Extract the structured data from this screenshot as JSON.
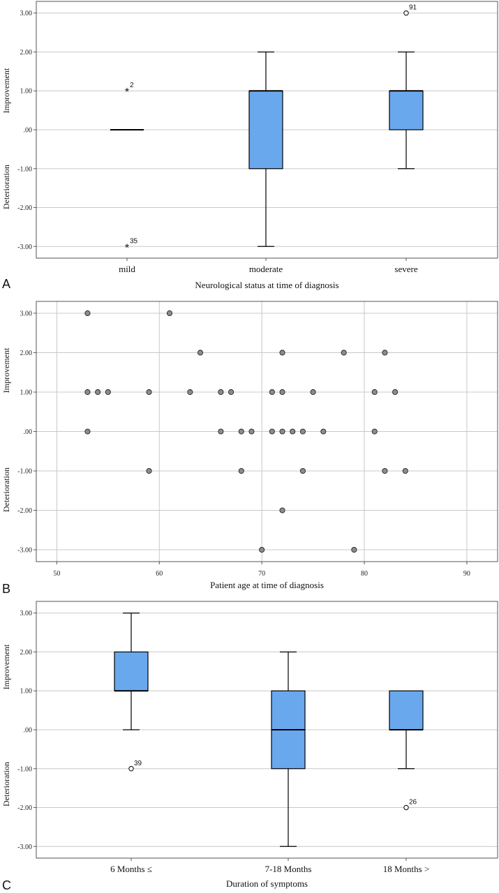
{
  "chart_data": [
    {
      "panel_label": "A",
      "type": "box",
      "xlabel": "Neurological status at time of diagnosis",
      "y_annotations": [
        "Improvement",
        "Deterioration"
      ],
      "ylim": [
        -3.3,
        3.3
      ],
      "yticks": [
        3,
        2,
        1,
        0,
        -1,
        -2,
        -3
      ],
      "ytick_labels": [
        "3.00",
        "2.00",
        "1.00",
        ".00",
        "-1.00",
        "-2.00",
        "-3.00"
      ],
      "grid": "horizontal",
      "categories": [
        "mild",
        "moderate",
        "severe"
      ],
      "boxes": [
        {
          "min": 0,
          "q1": 0,
          "median": 0,
          "q3": 0,
          "max": 0
        },
        {
          "min": -3,
          "q1": -1,
          "median": 1,
          "q3": 1,
          "max": 2
        },
        {
          "min": -1,
          "q1": 0,
          "median": 1,
          "q3": 1,
          "max": 2
        }
      ],
      "outliers": [
        {
          "category": 0,
          "value": 1,
          "label": "2",
          "marker": "star"
        },
        {
          "category": 0,
          "value": -3,
          "label": "35",
          "marker": "star"
        },
        {
          "category": 2,
          "value": 3,
          "label": "91",
          "marker": "circle"
        }
      ]
    },
    {
      "panel_label": "B",
      "type": "scatter",
      "xlabel": "Patient age at time of diagnosis",
      "y_annotations": [
        "Improvement",
        "Deterioration"
      ],
      "xlim": [
        48,
        93
      ],
      "xticks": [
        50,
        60,
        70,
        80,
        90
      ],
      "ylim": [
        -3.3,
        3.3
      ],
      "yticks": [
        3,
        2,
        1,
        0,
        -1,
        -2,
        -3
      ],
      "ytick_labels": [
        "3.00",
        "2.00",
        "1.00",
        ".00",
        "-1.00",
        "-2.00",
        "-3.00"
      ],
      "grid": "both",
      "points": [
        [
          53,
          3
        ],
        [
          53,
          1
        ],
        [
          53,
          0
        ],
        [
          54,
          1
        ],
        [
          55,
          1
        ],
        [
          59,
          1
        ],
        [
          59,
          -1
        ],
        [
          61,
          3
        ],
        [
          63,
          1
        ],
        [
          64,
          2
        ],
        [
          66,
          1
        ],
        [
          66,
          0
        ],
        [
          67,
          1
        ],
        [
          68,
          0
        ],
        [
          68,
          -1
        ],
        [
          69,
          0
        ],
        [
          70,
          -3
        ],
        [
          71,
          1
        ],
        [
          71,
          0
        ],
        [
          72,
          2
        ],
        [
          72,
          1
        ],
        [
          72,
          0
        ],
        [
          72,
          -2
        ],
        [
          73,
          0
        ],
        [
          74,
          0
        ],
        [
          74,
          -1
        ],
        [
          75,
          1
        ],
        [
          76,
          0
        ],
        [
          78,
          2
        ],
        [
          79,
          -3
        ],
        [
          81,
          1
        ],
        [
          81,
          0
        ],
        [
          82,
          2
        ],
        [
          82,
          -1
        ],
        [
          83,
          1
        ],
        [
          84,
          -1
        ]
      ]
    },
    {
      "panel_label": "C",
      "type": "box",
      "xlabel": "Duration of symptoms",
      "y_annotations": [
        "Improvement",
        "Deterioration"
      ],
      "ylim": [
        -3.3,
        3.3
      ],
      "yticks": [
        3,
        2,
        1,
        0,
        -1,
        -2,
        -3
      ],
      "ytick_labels": [
        "3.00",
        "2.00",
        "1.00",
        ".00",
        "-1.00",
        "-2.00",
        "-3.00"
      ],
      "grid": "horizontal",
      "categories": [
        "6 Months ≤",
        "7-18 Months",
        "18 Months >"
      ],
      "boxes": [
        {
          "min": 0,
          "q1": 1,
          "median": 1,
          "q3": 2,
          "max": 3
        },
        {
          "min": -3,
          "q1": -1,
          "median": 0,
          "q3": 1,
          "max": 2
        },
        {
          "min": -1,
          "q1": 0,
          "median": 0,
          "q3": 1,
          "max": 1
        }
      ],
      "outliers": [
        {
          "category": 0,
          "value": -1,
          "label": "39",
          "marker": "circle"
        },
        {
          "category": 2,
          "value": -2,
          "label": "26",
          "marker": "circle"
        }
      ]
    }
  ],
  "colors": {
    "box_fill": "#6aa8ee",
    "point_fill": "#8c8c8c",
    "grid": "#c8c8c8",
    "axis": "#555555"
  }
}
